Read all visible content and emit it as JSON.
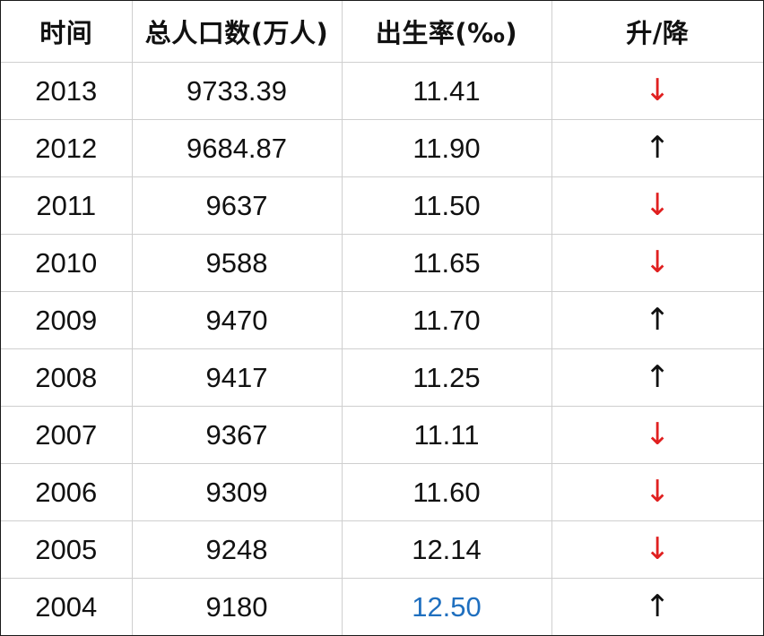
{
  "table": {
    "headers": [
      "时间",
      "总人口数(万人)",
      "出生率(‰)",
      "升/降"
    ],
    "rows": [
      {
        "year": "2013",
        "population": "9733.39",
        "birth_rate": "11.41",
        "trend": "down",
        "trend_glyph": "↓"
      },
      {
        "year": "2012",
        "population": "9684.87",
        "birth_rate": "11.90",
        "trend": "up",
        "trend_glyph": "↑"
      },
      {
        "year": "2011",
        "population": "9637",
        "birth_rate": "11.50",
        "trend": "down",
        "trend_glyph": "↓"
      },
      {
        "year": "2010",
        "population": "9588",
        "birth_rate": "11.65",
        "trend": "down",
        "trend_glyph": "↓"
      },
      {
        "year": "2009",
        "population": "9470",
        "birth_rate": "11.70",
        "trend": "up",
        "trend_glyph": "↑"
      },
      {
        "year": "2008",
        "population": "9417",
        "birth_rate": "11.25",
        "trend": "up",
        "trend_glyph": "↑"
      },
      {
        "year": "2007",
        "population": "9367",
        "birth_rate": "11.11",
        "trend": "down",
        "trend_glyph": "↓"
      },
      {
        "year": "2006",
        "population": "9309",
        "birth_rate": "11.60",
        "trend": "down",
        "trend_glyph": "↓"
      },
      {
        "year": "2005",
        "population": "9248",
        "birth_rate": "12.14",
        "trend": "down",
        "trend_glyph": "↓"
      },
      {
        "year": "2004",
        "population": "9180",
        "birth_rate": "12.50",
        "trend": "up",
        "trend_glyph": "↑",
        "birth_rate_highlight": true
      }
    ]
  },
  "colors": {
    "down_arrow": "#e02020",
    "up_arrow": "#111111",
    "highlight": "#1f6fbf",
    "grid": "#cfcfcf",
    "border": "#1a1a1a"
  }
}
